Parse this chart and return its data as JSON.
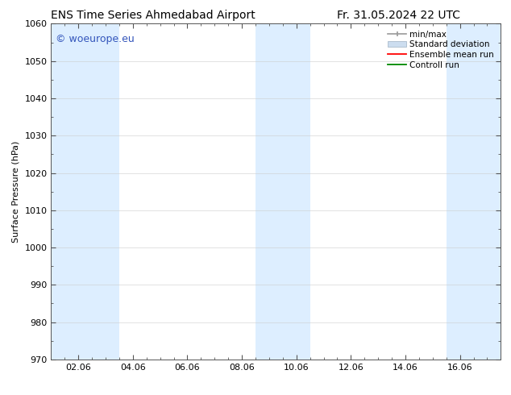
{
  "title_left": "ENS Time Series Ahmedabad Airport",
  "title_right": "Fr. 31.05.2024 22 UTC",
  "ylabel": "Surface Pressure (hPa)",
  "ylim": [
    970,
    1060
  ],
  "yticks": [
    970,
    980,
    990,
    1000,
    1010,
    1020,
    1030,
    1040,
    1050,
    1060
  ],
  "xlim": [
    0.0,
    16.5
  ],
  "xtick_labels": [
    "02.06",
    "04.06",
    "06.06",
    "08.06",
    "10.06",
    "12.06",
    "14.06",
    "16.06"
  ],
  "xtick_positions": [
    1,
    3,
    5,
    7,
    9,
    11,
    13,
    15
  ],
  "shaded_bands": [
    {
      "x_start": 0.0,
      "x_end": 2.5
    },
    {
      "x_start": 7.5,
      "x_end": 9.5
    },
    {
      "x_start": 14.5,
      "x_end": 16.5
    }
  ],
  "band_color": "#ddeeff",
  "background_color": "#ffffff",
  "watermark_text": "© woeurope.eu",
  "watermark_color": "#3355bb",
  "legend_items": [
    {
      "label": "min/max",
      "color": "#999999",
      "type": "errorbar"
    },
    {
      "label": "Standard deviation",
      "color": "#ccddef",
      "type": "bar"
    },
    {
      "label": "Ensemble mean run",
      "color": "#ff0000",
      "type": "line"
    },
    {
      "label": "Controll run",
      "color": "#008800",
      "type": "line"
    }
  ],
  "font_size_title": 10,
  "font_size_axis": 8,
  "font_size_legend": 7.5,
  "font_size_watermark": 9,
  "tick_minor_color": "#aaaaaa",
  "spine_color": "#555555"
}
